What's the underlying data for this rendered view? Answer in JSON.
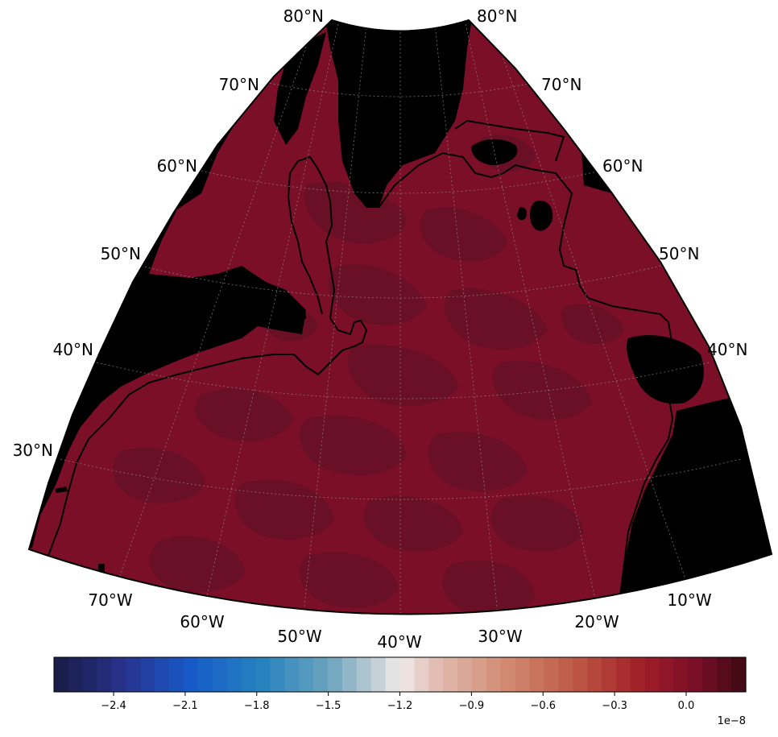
{
  "map": {
    "lat_labels_left": [
      "80°N",
      "70°N",
      "60°N",
      "50°N",
      "40°N",
      "30°N"
    ],
    "lat_labels_right": [
      "80°N",
      "70°N",
      "60°N",
      "50°N",
      "40°N"
    ],
    "lon_labels": [
      "70°W",
      "60°W",
      "50°W",
      "40°W",
      "30°W",
      "20°W",
      "10°W"
    ],
    "colors": {
      "ocean": "#7b0f28",
      "ocean_patch": "#6a1026",
      "land": "#000000",
      "gridline": "#9a8a8a"
    }
  },
  "colorbar": {
    "ticks": [
      {
        "value": -2.4,
        "label": "−2.4"
      },
      {
        "value": -2.1,
        "label": "−2.1"
      },
      {
        "value": -1.8,
        "label": "−1.8"
      },
      {
        "value": -1.5,
        "label": "−1.5"
      },
      {
        "value": -1.2,
        "label": "−1.2"
      },
      {
        "value": -0.9,
        "label": "−0.9"
      },
      {
        "value": -0.6,
        "label": "−0.6"
      },
      {
        "value": -0.3,
        "label": "−0.3"
      },
      {
        "value": 0.0,
        "label": "0.0"
      }
    ],
    "range": [
      -2.65,
      0.25
    ],
    "levels": 48,
    "exponent_label": "1e−8",
    "colormap": "balance"
  }
}
